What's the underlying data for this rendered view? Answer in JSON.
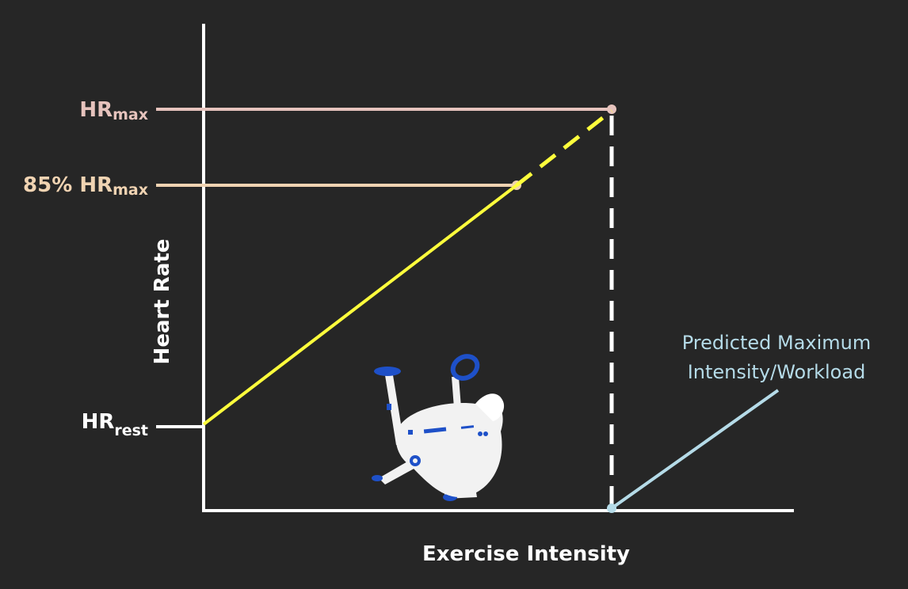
{
  "axes": {
    "y_label": "Heart Rate",
    "x_label": "Exercise Intensity"
  },
  "levels": {
    "hr_max": {
      "main": "HR",
      "sub": "max"
    },
    "hr_85": {
      "prefix": "85% ",
      "main": "HR",
      "sub": "max"
    },
    "hr_rest": {
      "main": "HR",
      "sub": "rest"
    }
  },
  "annotation": {
    "line1": "Predicted Maximum",
    "line2": "Intensity/Workload"
  },
  "colors": {
    "background": "#262626",
    "axis": "#ffffff",
    "hr_max": "#e6c3bd",
    "hr_85": "#f0d3b2",
    "hr_rest": "#ffffff",
    "trend": "#ffff3c",
    "annotation": "#b5dbe8",
    "bike_body": "#f2f2f2",
    "bike_accent": "#1e50c8"
  },
  "icons": {
    "bike": "exercise-bike-icon"
  }
}
